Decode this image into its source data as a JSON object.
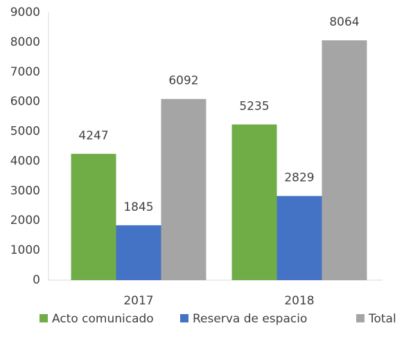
{
  "chart_data": {
    "type": "bar",
    "categories": [
      "2017",
      "2018"
    ],
    "series": [
      {
        "name": "Acto comunicado",
        "color": "#70ad47",
        "values": [
          4247,
          5235
        ]
      },
      {
        "name": "Reserva de espacio",
        "color": "#4472c4",
        "values": [
          1845,
          2829
        ]
      },
      {
        "name": "Total",
        "color": "#a5a5a5",
        "values": [
          6092,
          8064
        ]
      }
    ],
    "ylim": [
      0,
      9000
    ],
    "yticks": [
      0,
      1000,
      2000,
      3000,
      4000,
      5000,
      6000,
      7000,
      8000,
      9000
    ],
    "grid": false,
    "legend": "bottom"
  }
}
